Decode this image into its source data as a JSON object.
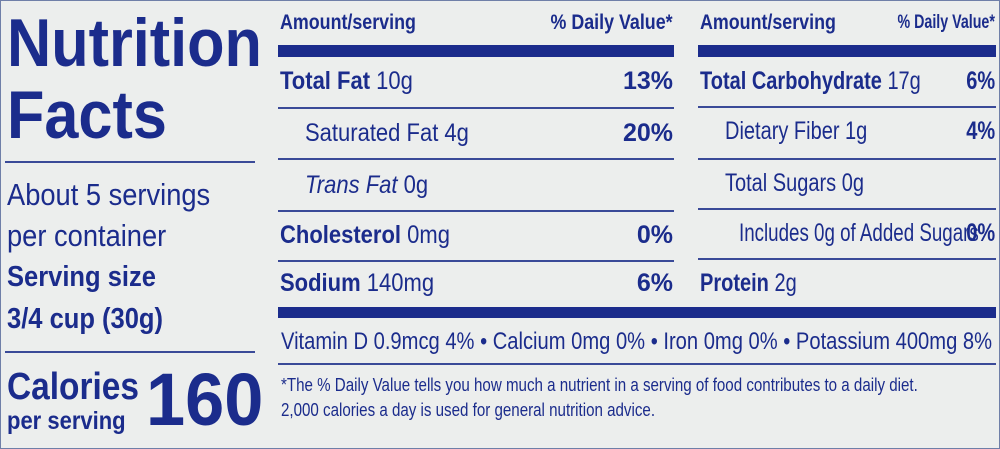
{
  "header": {
    "title_line1": "Nutrition",
    "title_line2": "Facts"
  },
  "servings": {
    "per_container_line1": "About 5 servings",
    "per_container_line2": "per container",
    "serving_size_label": "Serving size",
    "serving_size_value": "3/4 cup (30g)"
  },
  "calories": {
    "label": "Calories",
    "sublabel": "per serving",
    "value": "160"
  },
  "columns": [
    {
      "header_amount": "Amount/serving",
      "header_dv": "% Daily Value*",
      "rows": [
        {
          "name": "Total Fat",
          "amount": "10g",
          "dv": "13%"
        },
        {
          "name": "Saturated Fat",
          "amount": "4g",
          "dv": "20%"
        },
        {
          "name": "Trans Fat",
          "amount": "0g"
        },
        {
          "name": "Cholesterol",
          "amount": "0mg",
          "dv": "0%"
        },
        {
          "name": "Sodium",
          "amount": "140mg",
          "dv": "6%"
        }
      ]
    },
    {
      "header_amount": "Amount/serving",
      "header_dv": "% Daily Value*",
      "rows": [
        {
          "name": "Total Carbohydrate",
          "amount": "17g",
          "dv": "6%"
        },
        {
          "name": "Dietary Fiber",
          "amount": "1g",
          "dv": "4%"
        },
        {
          "name": "Total Sugars",
          "amount": "0g"
        },
        {
          "name": "Includes 0g of Added Sugars",
          "dv": "0%"
        },
        {
          "name": "Protein",
          "amount": "2g"
        }
      ]
    }
  ],
  "vitamins": "Vitamin D 0.9mcg 4% • Calcium 0mg 0% • Iron 0mg 0% • Potassium 400mg 8%",
  "footnote": [
    "*The % Daily Value tells you how much a nutrient in a serving of food contributes to a daily diet.",
    "2,000 calories a day is used for general nutrition advice."
  ]
}
